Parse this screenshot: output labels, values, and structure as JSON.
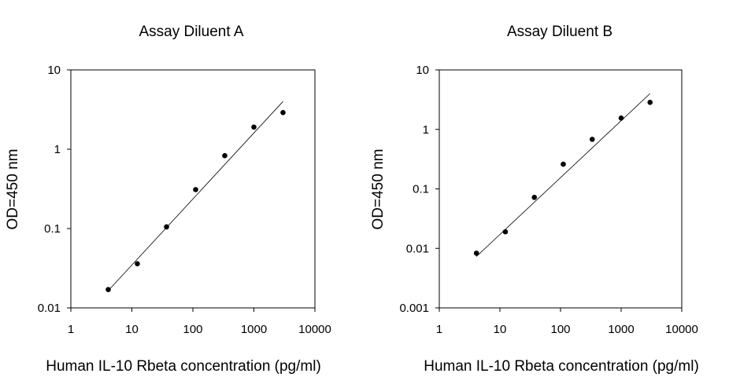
{
  "chart_data": [
    {
      "type": "scatter",
      "title": "Assay Diluent A",
      "xlabel": "Human IL-10 Rbeta concentration (pg/ml)",
      "ylabel": "OD=450 nm",
      "xscale": "log",
      "yscale": "log",
      "xlim": [
        1,
        10000
      ],
      "ylim": [
        0.01,
        10
      ],
      "xticks": [
        "1",
        "10",
        "100",
        "1000",
        "10000"
      ],
      "yticks": [
        "0.01",
        "0.1",
        "1",
        "10"
      ],
      "grid": false,
      "points": {
        "x": [
          4.1,
          12.3,
          37,
          111,
          333,
          1000,
          3000
        ],
        "y": [
          0.017,
          0.036,
          0.105,
          0.31,
          0.83,
          1.9,
          2.9
        ]
      },
      "fit_line": {
        "x": [
          4.1,
          3000
        ],
        "y": [
          0.0165,
          4.0
        ]
      }
    },
    {
      "type": "scatter",
      "title": "Assay Diluent B",
      "xlabel": "Human IL-10 Rbeta concentration (pg/ml)",
      "ylabel": "OD=450 nm",
      "xscale": "log",
      "yscale": "log",
      "xlim": [
        1,
        10000
      ],
      "ylim": [
        0.001,
        10
      ],
      "xticks": [
        "1",
        "10",
        "100",
        "1000",
        "10000"
      ],
      "yticks": [
        "0.001",
        "0.01",
        "0.1",
        "1",
        "10"
      ],
      "grid": false,
      "points": {
        "x": [
          4.1,
          12.3,
          37,
          111,
          333,
          1000,
          3000
        ],
        "y": [
          0.0083,
          0.019,
          0.072,
          0.26,
          0.68,
          1.55,
          2.85
        ]
      },
      "fit_line": {
        "x": [
          4.1,
          3000
        ],
        "y": [
          0.0073,
          4.0
        ]
      }
    }
  ]
}
